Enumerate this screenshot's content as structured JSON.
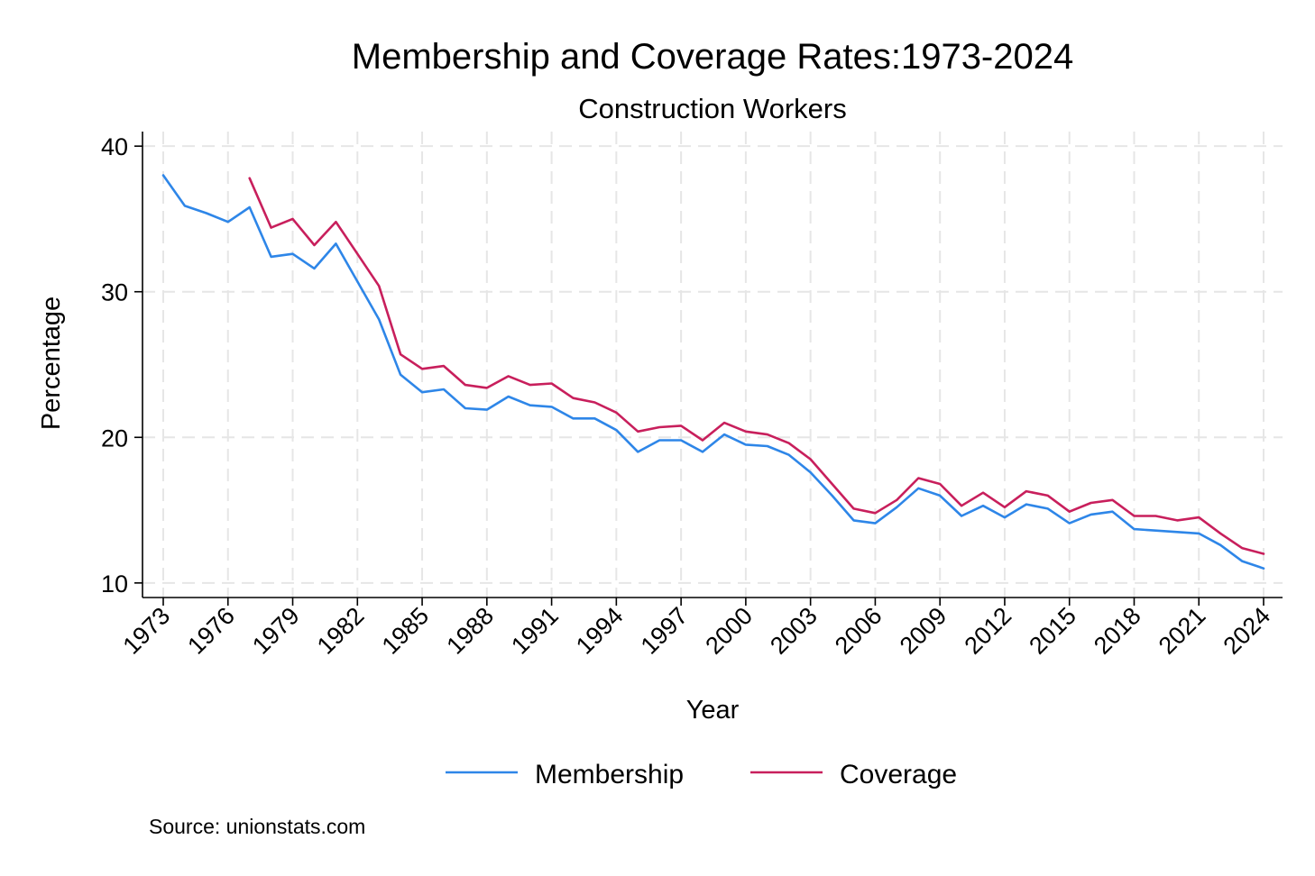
{
  "chart_data": {
    "type": "line",
    "title": "Membership and Coverage Rates:1973-2024",
    "subtitle": "Construction Workers",
    "xlabel": "Year",
    "ylabel": "Percentage",
    "xlim": [
      1973,
      2024
    ],
    "ylim": [
      9,
      41
    ],
    "x_ticks": [
      1973,
      1976,
      1979,
      1982,
      1985,
      1988,
      1991,
      1994,
      1997,
      2000,
      2003,
      2006,
      2009,
      2012,
      2015,
      2018,
      2021,
      2024
    ],
    "x_tick_labels": [
      "1973",
      "1976",
      "1979",
      "1982",
      "1985",
      "1988",
      "1991",
      "1994",
      "1997",
      "2000",
      "2003",
      "2006",
      "2009",
      "2012",
      "2015",
      "2018",
      "2021",
      "2024"
    ],
    "y_ticks": [
      10,
      20,
      30,
      40
    ],
    "y_tick_labels": [
      "10",
      "20",
      "30",
      "40"
    ],
    "grid": true,
    "legend_position": "bottom",
    "note": "Source: unionstats.com",
    "series": [
      {
        "name": "Membership",
        "color": "#2e86e8",
        "x": [
          1973,
          1974,
          1975,
          1976,
          1977,
          1978,
          1979,
          1980,
          1981,
          1982,
          1983,
          1984,
          1985,
          1986,
          1987,
          1988,
          1989,
          1990,
          1991,
          1992,
          1993,
          1994,
          1995,
          1996,
          1997,
          1998,
          1999,
          2000,
          2001,
          2002,
          2003,
          2004,
          2005,
          2006,
          2007,
          2008,
          2009,
          2010,
          2011,
          2012,
          2013,
          2014,
          2015,
          2016,
          2017,
          2018,
          2019,
          2020,
          2021,
          2022,
          2023,
          2024
        ],
        "values": [
          38.0,
          35.9,
          35.4,
          34.8,
          35.8,
          32.4,
          32.6,
          31.6,
          33.3,
          30.7,
          28.1,
          24.3,
          23.1,
          23.3,
          22.0,
          21.9,
          22.8,
          22.2,
          22.1,
          21.3,
          21.3,
          20.5,
          19.0,
          19.8,
          19.8,
          19.0,
          20.2,
          19.5,
          19.4,
          18.8,
          17.6,
          16.0,
          14.3,
          14.1,
          15.2,
          16.5,
          16.0,
          14.6,
          15.3,
          14.5,
          15.4,
          15.1,
          14.1,
          14.7,
          14.9,
          13.7,
          13.6,
          13.5,
          13.4,
          12.6,
          11.5,
          11.0
        ]
      },
      {
        "name": "Coverage",
        "color": "#c81f5c",
        "x": [
          1977,
          1978,
          1979,
          1980,
          1981,
          1982,
          1983,
          1984,
          1985,
          1986,
          1987,
          1988,
          1989,
          1990,
          1991,
          1992,
          1993,
          1994,
          1995,
          1996,
          1997,
          1998,
          1999,
          2000,
          2001,
          2002,
          2003,
          2004,
          2005,
          2006,
          2007,
          2008,
          2009,
          2010,
          2011,
          2012,
          2013,
          2014,
          2015,
          2016,
          2017,
          2018,
          2019,
          2020,
          2021,
          2022,
          2023,
          2024
        ],
        "values": [
          37.8,
          34.4,
          35.0,
          33.2,
          34.8,
          32.6,
          30.4,
          25.7,
          24.7,
          24.9,
          23.6,
          23.4,
          24.2,
          23.6,
          23.7,
          22.7,
          22.4,
          21.7,
          20.4,
          20.7,
          20.8,
          19.8,
          21.0,
          20.4,
          20.2,
          19.6,
          18.5,
          16.8,
          15.1,
          14.8,
          15.7,
          17.2,
          16.8,
          15.3,
          16.2,
          15.2,
          16.3,
          16.0,
          14.9,
          15.5,
          15.7,
          14.6,
          14.6,
          14.3,
          14.5,
          13.4,
          12.4,
          12.0
        ]
      }
    ]
  }
}
